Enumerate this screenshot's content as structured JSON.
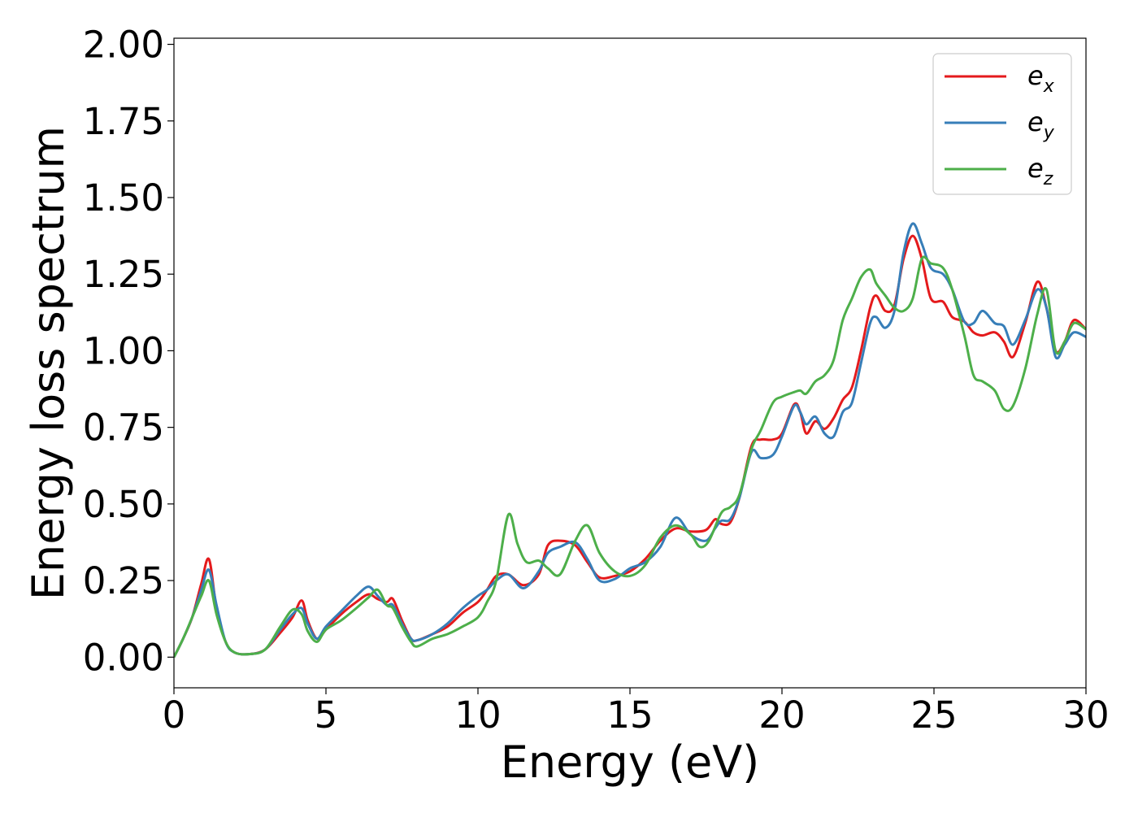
{
  "chart_data": {
    "type": "line",
    "xlabel": "Energy (eV)",
    "ylabel": "Energy loss spectrum",
    "xlim": [
      0,
      30
    ],
    "ylim": [
      -0.1,
      2.02
    ],
    "x_ticks": [
      "0",
      "5",
      "10",
      "15",
      "20",
      "25",
      "30"
    ],
    "y_ticks": [
      "0.00",
      "0.25",
      "0.50",
      "0.75",
      "1.00",
      "1.25",
      "1.50",
      "1.75",
      "2.00"
    ],
    "grid": false,
    "legend_position": "top-right",
    "series": [
      {
        "name": "e_x",
        "label_base": "e",
        "label_sub": "x",
        "color": "#e41a1c",
        "points": [
          [
            0,
            0
          ],
          [
            0.3,
            0.06
          ],
          [
            0.6,
            0.13
          ],
          [
            0.9,
            0.24
          ],
          [
            1.15,
            0.32
          ],
          [
            1.4,
            0.16
          ],
          [
            1.7,
            0.05
          ],
          [
            2,
            0.015
          ],
          [
            2.5,
            0.01
          ],
          [
            3,
            0.025
          ],
          [
            3.5,
            0.08
          ],
          [
            3.9,
            0.13
          ],
          [
            4.2,
            0.185
          ],
          [
            4.4,
            0.12
          ],
          [
            4.7,
            0.06
          ],
          [
            5,
            0.09
          ],
          [
            5.5,
            0.14
          ],
          [
            6,
            0.18
          ],
          [
            6.4,
            0.205
          ],
          [
            6.7,
            0.19
          ],
          [
            7,
            0.18
          ],
          [
            7.2,
            0.19
          ],
          [
            7.5,
            0.12
          ],
          [
            7.8,
            0.06
          ],
          [
            8,
            0.055
          ],
          [
            8.5,
            0.075
          ],
          [
            9,
            0.1
          ],
          [
            9.5,
            0.145
          ],
          [
            10,
            0.18
          ],
          [
            10.3,
            0.22
          ],
          [
            10.6,
            0.265
          ],
          [
            11,
            0.27
          ],
          [
            11.5,
            0.235
          ],
          [
            12,
            0.27
          ],
          [
            12.3,
            0.365
          ],
          [
            12.7,
            0.38
          ],
          [
            13.2,
            0.365
          ],
          [
            13.6,
            0.31
          ],
          [
            14,
            0.26
          ],
          [
            14.5,
            0.265
          ],
          [
            15,
            0.28
          ],
          [
            15.5,
            0.32
          ],
          [
            16,
            0.38
          ],
          [
            16.5,
            0.42
          ],
          [
            17,
            0.41
          ],
          [
            17.5,
            0.415
          ],
          [
            17.8,
            0.45
          ],
          [
            18,
            0.435
          ],
          [
            18.3,
            0.44
          ],
          [
            18.6,
            0.52
          ],
          [
            19,
            0.69
          ],
          [
            19.3,
            0.71
          ],
          [
            19.7,
            0.71
          ],
          [
            20,
            0.73
          ],
          [
            20.4,
            0.825
          ],
          [
            20.6,
            0.8
          ],
          [
            20.8,
            0.73
          ],
          [
            21.1,
            0.77
          ],
          [
            21.4,
            0.745
          ],
          [
            21.7,
            0.78
          ],
          [
            22,
            0.84
          ],
          [
            22.3,
            0.88
          ],
          [
            22.6,
            1.0
          ],
          [
            22.9,
            1.14
          ],
          [
            23.1,
            1.18
          ],
          [
            23.4,
            1.13
          ],
          [
            23.7,
            1.15
          ],
          [
            24,
            1.3
          ],
          [
            24.3,
            1.375
          ],
          [
            24.6,
            1.3
          ],
          [
            24.9,
            1.17
          ],
          [
            25.3,
            1.16
          ],
          [
            25.6,
            1.11
          ],
          [
            26,
            1.095
          ],
          [
            26.3,
            1.06
          ],
          [
            26.6,
            1.05
          ],
          [
            27,
            1.06
          ],
          [
            27.3,
            1.03
          ],
          [
            27.6,
            0.98
          ],
          [
            28,
            1.09
          ],
          [
            28.4,
            1.225
          ],
          [
            28.7,
            1.14
          ],
          [
            29,
            1.0
          ],
          [
            29.3,
            1.03
          ],
          [
            29.6,
            1.1
          ],
          [
            30,
            1.07
          ]
        ]
      },
      {
        "name": "e_y",
        "label_base": "e",
        "label_sub": "y",
        "color": "#377eb8",
        "points": [
          [
            0,
            0
          ],
          [
            0.3,
            0.06
          ],
          [
            0.6,
            0.13
          ],
          [
            0.9,
            0.22
          ],
          [
            1.15,
            0.285
          ],
          [
            1.4,
            0.17
          ],
          [
            1.7,
            0.05
          ],
          [
            2,
            0.015
          ],
          [
            2.5,
            0.01
          ],
          [
            3,
            0.025
          ],
          [
            3.5,
            0.09
          ],
          [
            3.9,
            0.14
          ],
          [
            4.2,
            0.16
          ],
          [
            4.4,
            0.11
          ],
          [
            4.7,
            0.06
          ],
          [
            5,
            0.1
          ],
          [
            5.5,
            0.15
          ],
          [
            6,
            0.2
          ],
          [
            6.4,
            0.23
          ],
          [
            6.7,
            0.2
          ],
          [
            7,
            0.17
          ],
          [
            7.2,
            0.17
          ],
          [
            7.5,
            0.11
          ],
          [
            7.8,
            0.06
          ],
          [
            8,
            0.055
          ],
          [
            8.5,
            0.075
          ],
          [
            9,
            0.11
          ],
          [
            9.5,
            0.16
          ],
          [
            10,
            0.2
          ],
          [
            10.3,
            0.22
          ],
          [
            10.6,
            0.25
          ],
          [
            11,
            0.27
          ],
          [
            11.5,
            0.225
          ],
          [
            12,
            0.28
          ],
          [
            12.3,
            0.34
          ],
          [
            12.7,
            0.36
          ],
          [
            13.2,
            0.375
          ],
          [
            13.6,
            0.32
          ],
          [
            14,
            0.25
          ],
          [
            14.5,
            0.255
          ],
          [
            15,
            0.29
          ],
          [
            15.5,
            0.31
          ],
          [
            16,
            0.36
          ],
          [
            16.5,
            0.455
          ],
          [
            17,
            0.4
          ],
          [
            17.5,
            0.38
          ],
          [
            17.8,
            0.42
          ],
          [
            18,
            0.445
          ],
          [
            18.3,
            0.45
          ],
          [
            18.6,
            0.52
          ],
          [
            19,
            0.67
          ],
          [
            19.3,
            0.65
          ],
          [
            19.7,
            0.66
          ],
          [
            20,
            0.72
          ],
          [
            20.4,
            0.82
          ],
          [
            20.6,
            0.8
          ],
          [
            20.8,
            0.76
          ],
          [
            21.1,
            0.785
          ],
          [
            21.4,
            0.73
          ],
          [
            21.7,
            0.72
          ],
          [
            22,
            0.8
          ],
          [
            22.3,
            0.83
          ],
          [
            22.6,
            0.96
          ],
          [
            22.9,
            1.09
          ],
          [
            23.1,
            1.11
          ],
          [
            23.4,
            1.075
          ],
          [
            23.7,
            1.13
          ],
          [
            24,
            1.32
          ],
          [
            24.3,
            1.415
          ],
          [
            24.6,
            1.35
          ],
          [
            24.9,
            1.27
          ],
          [
            25.3,
            1.25
          ],
          [
            25.6,
            1.2
          ],
          [
            26,
            1.095
          ],
          [
            26.3,
            1.09
          ],
          [
            26.6,
            1.13
          ],
          [
            27,
            1.09
          ],
          [
            27.3,
            1.08
          ],
          [
            27.6,
            1.02
          ],
          [
            28,
            1.1
          ],
          [
            28.4,
            1.2
          ],
          [
            28.7,
            1.14
          ],
          [
            29,
            0.98
          ],
          [
            29.3,
            1.02
          ],
          [
            29.6,
            1.06
          ],
          [
            30,
            1.045
          ]
        ]
      },
      {
        "name": "e_z",
        "label_base": "e",
        "label_sub": "z",
        "color": "#4daf4a",
        "points": [
          [
            0,
            0
          ],
          [
            0.3,
            0.06
          ],
          [
            0.6,
            0.13
          ],
          [
            0.9,
            0.2
          ],
          [
            1.15,
            0.25
          ],
          [
            1.4,
            0.14
          ],
          [
            1.7,
            0.05
          ],
          [
            2,
            0.015
          ],
          [
            2.5,
            0.01
          ],
          [
            3,
            0.025
          ],
          [
            3.5,
            0.1
          ],
          [
            3.9,
            0.155
          ],
          [
            4.2,
            0.14
          ],
          [
            4.4,
            0.085
          ],
          [
            4.7,
            0.05
          ],
          [
            5,
            0.09
          ],
          [
            5.5,
            0.12
          ],
          [
            6,
            0.16
          ],
          [
            6.4,
            0.195
          ],
          [
            6.7,
            0.22
          ],
          [
            7,
            0.17
          ],
          [
            7.2,
            0.16
          ],
          [
            7.5,
            0.1
          ],
          [
            7.8,
            0.05
          ],
          [
            8,
            0.035
          ],
          [
            8.5,
            0.06
          ],
          [
            9,
            0.075
          ],
          [
            9.5,
            0.1
          ],
          [
            10,
            0.13
          ],
          [
            10.3,
            0.18
          ],
          [
            10.6,
            0.25
          ],
          [
            11,
            0.465
          ],
          [
            11.3,
            0.37
          ],
          [
            11.6,
            0.31
          ],
          [
            12,
            0.315
          ],
          [
            12.3,
            0.29
          ],
          [
            12.7,
            0.27
          ],
          [
            13.2,
            0.38
          ],
          [
            13.6,
            0.43
          ],
          [
            14,
            0.34
          ],
          [
            14.5,
            0.28
          ],
          [
            15,
            0.265
          ],
          [
            15.5,
            0.3
          ],
          [
            16,
            0.39
          ],
          [
            16.5,
            0.43
          ],
          [
            17,
            0.4
          ],
          [
            17.3,
            0.36
          ],
          [
            17.6,
            0.38
          ],
          [
            18,
            0.47
          ],
          [
            18.3,
            0.49
          ],
          [
            18.6,
            0.53
          ],
          [
            19,
            0.68
          ],
          [
            19.3,
            0.74
          ],
          [
            19.7,
            0.83
          ],
          [
            20,
            0.85
          ],
          [
            20.4,
            0.865
          ],
          [
            20.6,
            0.87
          ],
          [
            20.8,
            0.86
          ],
          [
            21.1,
            0.9
          ],
          [
            21.4,
            0.92
          ],
          [
            21.7,
            0.97
          ],
          [
            22,
            1.1
          ],
          [
            22.3,
            1.17
          ],
          [
            22.6,
            1.24
          ],
          [
            22.9,
            1.265
          ],
          [
            23.1,
            1.22
          ],
          [
            23.4,
            1.18
          ],
          [
            23.7,
            1.14
          ],
          [
            24,
            1.13
          ],
          [
            24.3,
            1.17
          ],
          [
            24.6,
            1.3
          ],
          [
            24.9,
            1.285
          ],
          [
            25.3,
            1.27
          ],
          [
            25.6,
            1.2
          ],
          [
            26,
            1.05
          ],
          [
            26.3,
            0.92
          ],
          [
            26.6,
            0.9
          ],
          [
            27,
            0.87
          ],
          [
            27.3,
            0.81
          ],
          [
            27.6,
            0.82
          ],
          [
            28,
            0.94
          ],
          [
            28.4,
            1.12
          ],
          [
            28.7,
            1.2
          ],
          [
            29,
            1.0
          ],
          [
            29.3,
            1.03
          ],
          [
            29.6,
            1.09
          ],
          [
            30,
            1.07
          ]
        ]
      }
    ]
  }
}
